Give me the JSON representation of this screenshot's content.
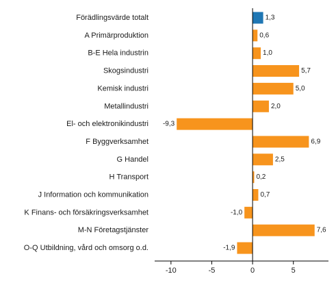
{
  "chart_data": {
    "type": "bar",
    "orientation": "horizontal",
    "categories": [
      "Förädlingsvärde totalt",
      "A Primärproduktion",
      "B-E Hela industrin",
      "Skogsindustri",
      "Kemisk industri",
      "Metallindustri",
      "El- och elektronikindustri",
      "F Byggverksamhet",
      "G Handel",
      "H Transport",
      "J Information och kommunikation",
      "K Finans- och försäkringsverksamhet",
      "M-N Företagstjänster",
      "O-Q Utbildning, vård och omsorg o.d."
    ],
    "values": [
      1.3,
      0.6,
      1.0,
      5.7,
      5.0,
      2.0,
      -9.3,
      6.9,
      2.5,
      0.2,
      0.7,
      -1.0,
      7.6,
      -1.9
    ],
    "value_labels": [
      "1,3",
      "0,6",
      "1,0",
      "5,7",
      "5,0",
      "2,0",
      "-9,3",
      "6,9",
      "2,5",
      "0,2",
      "0,7",
      "-1,0",
      "7,6",
      "-1,9"
    ],
    "bar_colors": [
      "#1f77b4",
      "#f7941d",
      "#f7941d",
      "#f7941d",
      "#f7941d",
      "#f7941d",
      "#f7941d",
      "#f7941d",
      "#f7941d",
      "#f7941d",
      "#f7941d",
      "#f7941d",
      "#f7941d",
      "#f7941d"
    ],
    "xlim": [
      -12,
      9.3
    ],
    "xticks": [
      -10,
      -5,
      0,
      5
    ],
    "xtick_labels": [
      "-10",
      "-5",
      "0",
      "5"
    ],
    "grid": false,
    "axis_color": "#000000",
    "gridline_color": "#d9d9d9",
    "title": "",
    "xlabel": "",
    "ylabel": ""
  }
}
